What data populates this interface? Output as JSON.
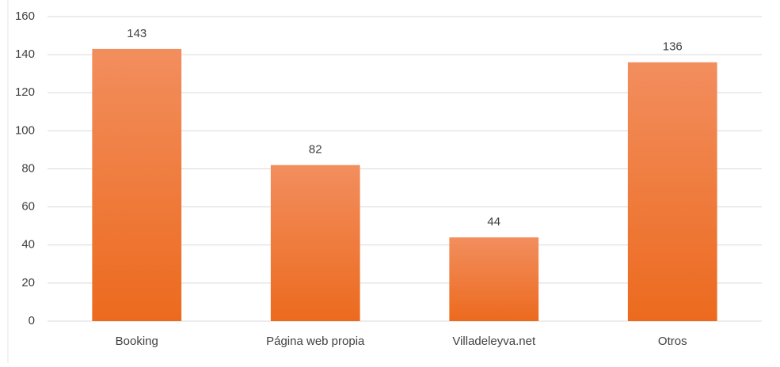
{
  "chart_data": {
    "type": "bar",
    "categories": [
      "Booking",
      "Página web propia",
      "Villadeleyva.net",
      "Otros"
    ],
    "values": [
      143,
      82,
      44,
      136
    ],
    "color": "#ed7d31",
    "ylim": [
      0,
      160
    ],
    "yticks": [
      0,
      20,
      40,
      60,
      80,
      100,
      120,
      140,
      160
    ],
    "grid": true
  }
}
